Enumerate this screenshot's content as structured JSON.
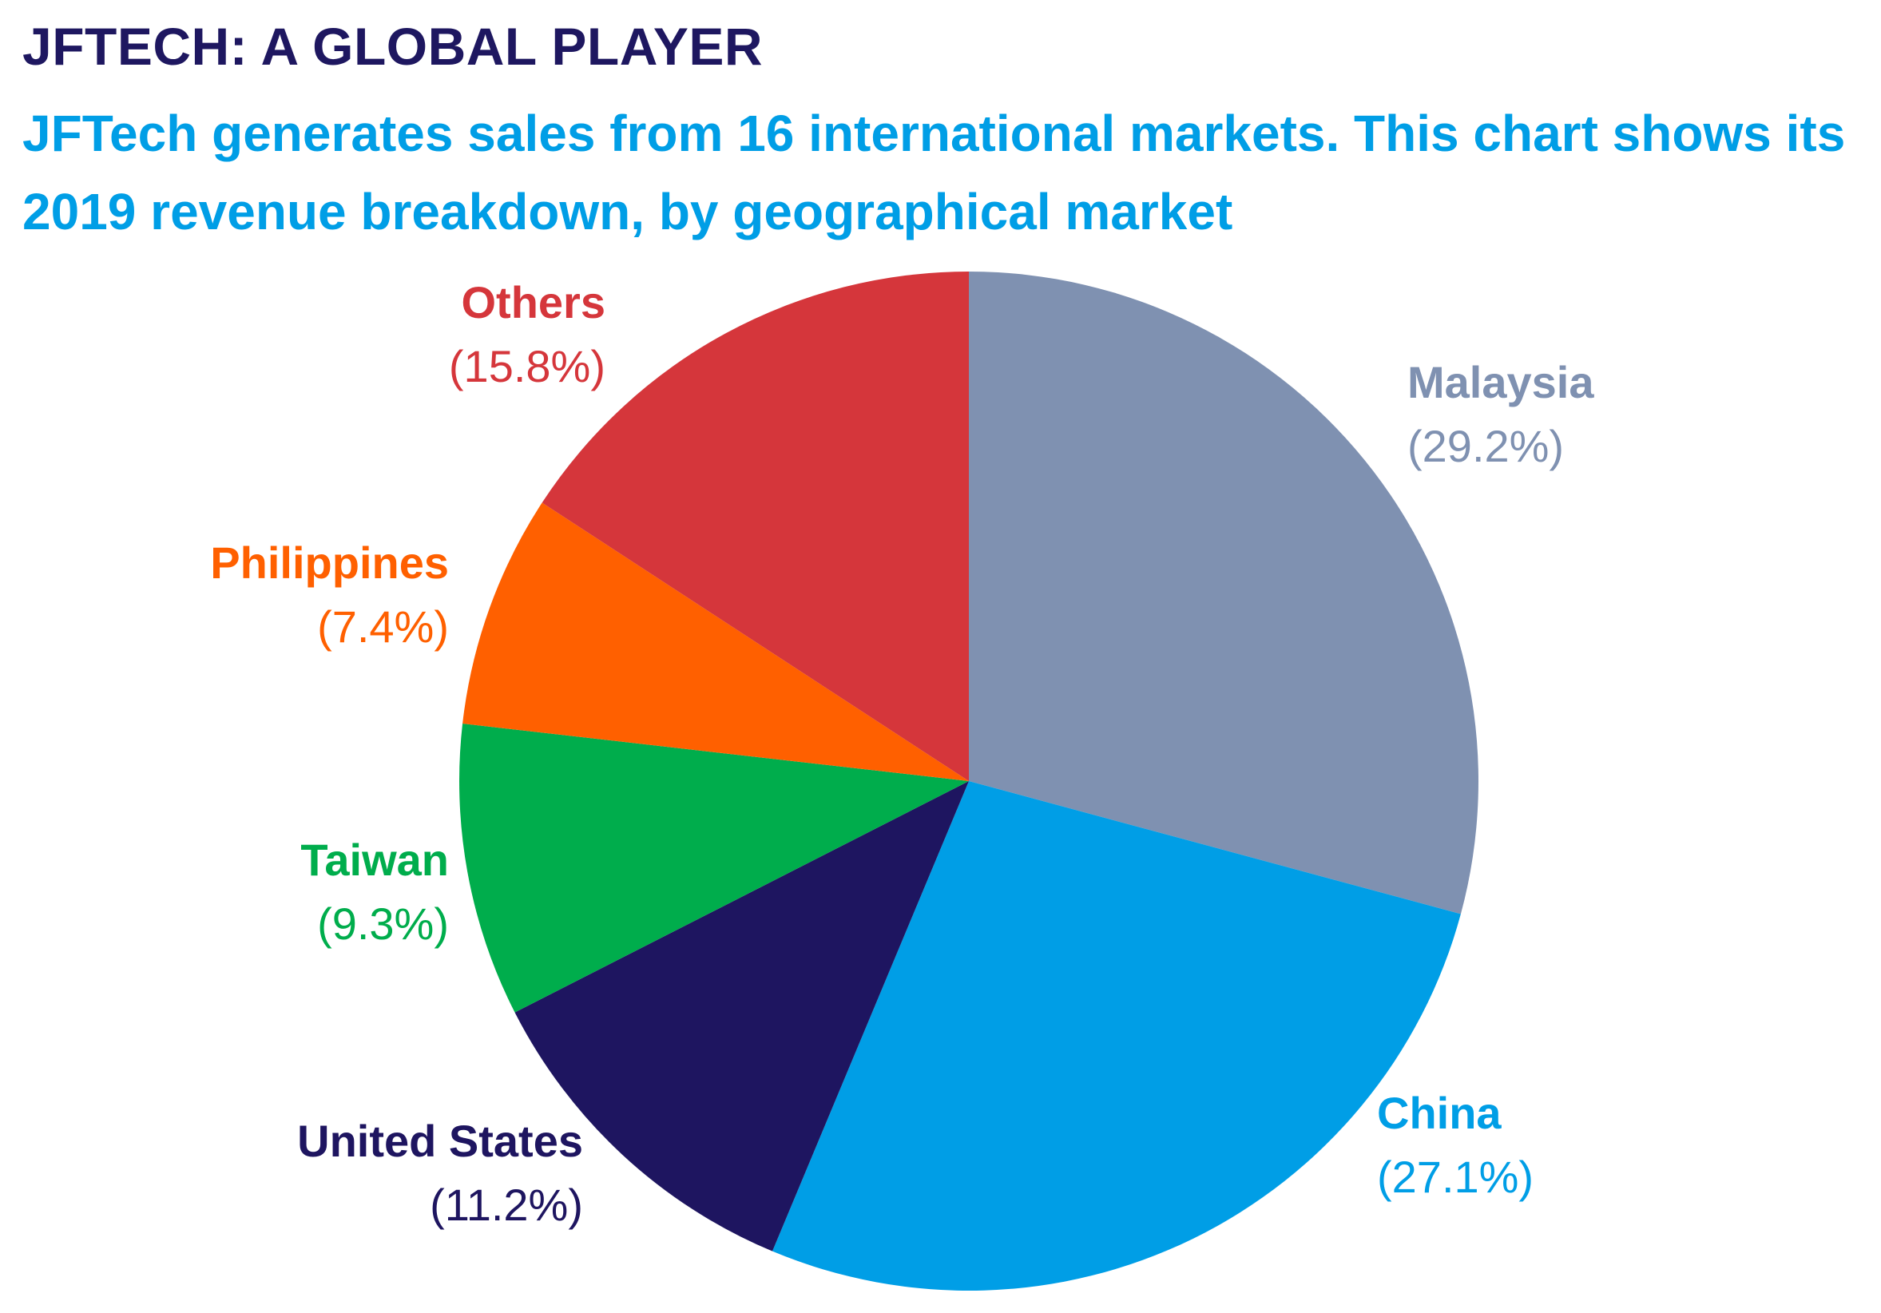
{
  "title": "JFTECH: A GLOBAL PLAYER",
  "subtitle": "JFTech generates sales from 16 international markets. This chart shows its 2019 revenue breakdown, by geographical market",
  "chart_data": {
    "type": "pie",
    "start_angle_deg": 0,
    "direction": "clockwise",
    "slices": [
      {
        "name": "Malaysia",
        "value": 29.2,
        "label": "(29.2%)",
        "color": "#7f91b1"
      },
      {
        "name": "China",
        "value": 27.1,
        "label": "(27.1%)",
        "color": "#009ee6"
      },
      {
        "name": "United States",
        "value": 11.2,
        "label": "(11.2%)",
        "color": "#1e1560"
      },
      {
        "name": "Taiwan",
        "value": 9.3,
        "label": "(9.3%)",
        "color": "#00ad4c"
      },
      {
        "name": "Philippines",
        "value": 7.4,
        "label": "(7.4%)",
        "color": "#ff6000"
      },
      {
        "name": "Others",
        "value": 15.8,
        "label": "(15.8%)",
        "color": "#d5363b"
      }
    ]
  }
}
